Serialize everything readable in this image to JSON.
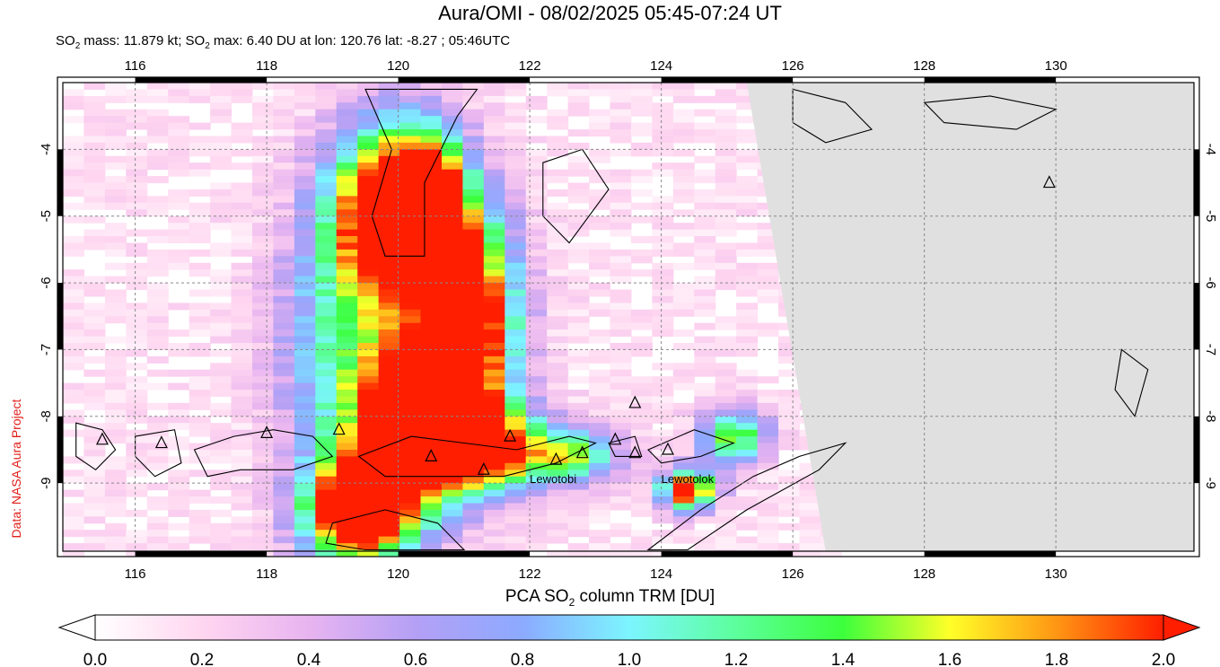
{
  "title": "Aura/OMI - 08/02/2025 05:45-07:24 UT",
  "subtitle": {
    "mass_label": "SO",
    "mass_sub": "2",
    "mass_text": " mass: 11.879 kt; SO",
    "max_sub": "2",
    "max_text": " max: 6.40 DU at lon: 120.76 lat: -8.27 ; 05:46UTC"
  },
  "credit": "Data: NASA Aura Project",
  "colorbar": {
    "label_prefix": "PCA SO",
    "label_sub": "2",
    "label_suffix": " column TRM [DU]",
    "ticks": [
      "0.0",
      "0.2",
      "0.4",
      "0.6",
      "0.8",
      "1.0",
      "1.2",
      "1.4",
      "1.6",
      "1.8",
      "2.0"
    ],
    "min": 0.0,
    "max": 2.0,
    "colors": [
      "#ffffff",
      "#ffd6f0",
      "#e8b4f0",
      "#b4a0f5",
      "#8caaff",
      "#7cf5ff",
      "#5cff9c",
      "#3cff3c",
      "#ffff28",
      "#ff9614",
      "#ff1e00"
    ]
  },
  "map": {
    "lon_ticks": [
      "116",
      "118",
      "120",
      "122",
      "124",
      "126",
      "128",
      "130"
    ],
    "lat_ticks": [
      "-4",
      "-5",
      "-6",
      "-7",
      "-8",
      "-9"
    ],
    "lon_range": [
      114.9,
      132.1
    ],
    "lat_range": [
      -10.02,
      -3.0
    ],
    "volcano_labels": [
      "Lewotobi",
      "Lewotolok"
    ],
    "no_data_color": "#e0e0e0",
    "grid": "dashed"
  }
}
